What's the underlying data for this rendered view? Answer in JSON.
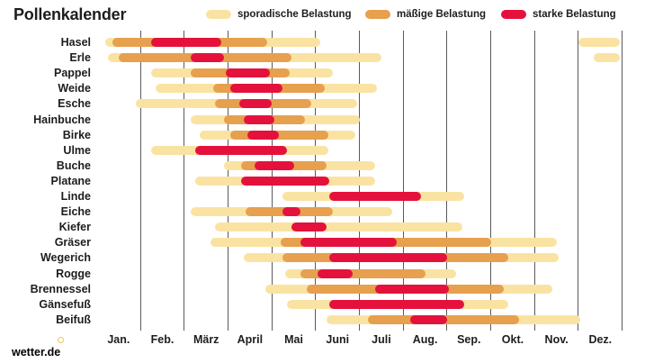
{
  "title": "Pollenkalender",
  "legend": {
    "items": [
      {
        "label": "sporadische Belastung",
        "level": "sporadic"
      },
      {
        "label": "mäßige Belastung",
        "level": "moderate"
      },
      {
        "label": "starke Belastung",
        "level": "strong"
      }
    ]
  },
  "colors": {
    "sporadic": "#fae3a2",
    "moderate": "#e6a04e",
    "strong": "#e5113d",
    "gridline": "#5a5a5a",
    "text": "#1d1d1b"
  },
  "footer": {
    "brand": "wetter.de"
  },
  "chart_data": {
    "type": "heatmap",
    "subtype": "seasonal-timeline-gantt",
    "title": "Pollenkalender",
    "unit": "months, 0 = start of Jan., 12 = end of Dez.",
    "months": [
      "Jan.",
      "Feb.",
      "März",
      "April",
      "Mai",
      "Juni",
      "Juli",
      "Aug.",
      "Sep.",
      "Okt.",
      "Nov.",
      "Dez."
    ],
    "levels": [
      "sporadic",
      "moderate",
      "strong"
    ],
    "legend_position": "top",
    "grid": "vertical month boundaries",
    "rows": [
      {
        "label": "Hasel",
        "segments": [
          {
            "level": "sporadic",
            "start": 0.2,
            "end": 5.1
          },
          {
            "level": "sporadic",
            "start": 11.0,
            "end": 11.95
          },
          {
            "level": "moderate",
            "start": 0.35,
            "end": 3.9
          },
          {
            "level": "strong",
            "start": 1.25,
            "end": 2.85
          }
        ]
      },
      {
        "label": "Erle",
        "segments": [
          {
            "level": "sporadic",
            "start": 0.25,
            "end": 6.5
          },
          {
            "level": "sporadic",
            "start": 11.35,
            "end": 11.95
          },
          {
            "level": "moderate",
            "start": 0.5,
            "end": 4.45
          },
          {
            "level": "strong",
            "start": 2.15,
            "end": 2.9
          }
        ]
      },
      {
        "label": "Pappel",
        "segments": [
          {
            "level": "sporadic",
            "start": 1.25,
            "end": 5.4
          },
          {
            "level": "moderate",
            "start": 2.15,
            "end": 4.4
          },
          {
            "level": "strong",
            "start": 2.95,
            "end": 3.95
          }
        ]
      },
      {
        "label": "Weide",
        "segments": [
          {
            "level": "sporadic",
            "start": 1.35,
            "end": 6.4
          },
          {
            "level": "moderate",
            "start": 2.65,
            "end": 5.2
          },
          {
            "level": "strong",
            "start": 3.05,
            "end": 4.25
          }
        ]
      },
      {
        "label": "Esche",
        "segments": [
          {
            "level": "sporadic",
            "start": 0.9,
            "end": 5.95
          },
          {
            "level": "moderate",
            "start": 2.7,
            "end": 4.9
          },
          {
            "level": "strong",
            "start": 3.25,
            "end": 4.0
          }
        ]
      },
      {
        "label": "Hainbuche",
        "segments": [
          {
            "level": "sporadic",
            "start": 2.15,
            "end": 6.0
          },
          {
            "level": "moderate",
            "start": 2.9,
            "end": 4.75
          },
          {
            "level": "strong",
            "start": 3.35,
            "end": 4.05
          }
        ]
      },
      {
        "label": "Birke",
        "segments": [
          {
            "level": "sporadic",
            "start": 2.35,
            "end": 5.9
          },
          {
            "level": "moderate",
            "start": 3.05,
            "end": 5.3
          },
          {
            "level": "strong",
            "start": 3.45,
            "end": 4.15
          }
        ]
      },
      {
        "label": "Ulme",
        "segments": [
          {
            "level": "sporadic",
            "start": 1.25,
            "end": 5.3
          },
          {
            "level": "strong",
            "start": 2.25,
            "end": 4.35
          }
        ]
      },
      {
        "label": "Buche",
        "segments": [
          {
            "level": "sporadic",
            "start": 2.9,
            "end": 6.35
          },
          {
            "level": "moderate",
            "start": 3.3,
            "end": 5.25
          },
          {
            "level": "strong",
            "start": 3.6,
            "end": 4.5
          }
        ]
      },
      {
        "label": "Platane",
        "segments": [
          {
            "level": "sporadic",
            "start": 2.25,
            "end": 6.35
          },
          {
            "level": "strong",
            "start": 3.3,
            "end": 5.3
          }
        ]
      },
      {
        "label": "Linde",
        "segments": [
          {
            "level": "sporadic",
            "start": 4.25,
            "end": 8.4
          },
          {
            "level": "strong",
            "start": 5.3,
            "end": 7.4
          }
        ]
      },
      {
        "label": "Eiche",
        "segments": [
          {
            "level": "sporadic",
            "start": 2.15,
            "end": 6.75
          },
          {
            "level": "moderate",
            "start": 3.4,
            "end": 5.4
          },
          {
            "level": "strong",
            "start": 4.25,
            "end": 4.65
          }
        ]
      },
      {
        "label": "Kiefer",
        "segments": [
          {
            "level": "sporadic",
            "start": 2.7,
            "end": 8.35
          },
          {
            "level": "strong",
            "start": 4.45,
            "end": 5.25
          }
        ]
      },
      {
        "label": "Gräser",
        "segments": [
          {
            "level": "sporadic",
            "start": 2.6,
            "end": 10.5
          },
          {
            "level": "moderate",
            "start": 4.2,
            "end": 9.0
          },
          {
            "level": "strong",
            "start": 4.65,
            "end": 6.85
          }
        ]
      },
      {
        "label": "Wegerich",
        "segments": [
          {
            "level": "sporadic",
            "start": 3.35,
            "end": 10.55
          },
          {
            "level": "moderate",
            "start": 4.25,
            "end": 9.4
          },
          {
            "level": "strong",
            "start": 5.3,
            "end": 8.0
          }
        ]
      },
      {
        "label": "Rogge",
        "segments": [
          {
            "level": "sporadic",
            "start": 4.3,
            "end": 8.2
          },
          {
            "level": "moderate",
            "start": 4.65,
            "end": 7.5
          },
          {
            "level": "strong",
            "start": 5.05,
            "end": 5.85
          }
        ]
      },
      {
        "label": "Brennessel",
        "segments": [
          {
            "level": "sporadic",
            "start": 3.85,
            "end": 10.4
          },
          {
            "level": "moderate",
            "start": 4.8,
            "end": 9.3
          },
          {
            "level": "strong",
            "start": 6.35,
            "end": 8.05
          }
        ]
      },
      {
        "label": "Gänsefuß",
        "segments": [
          {
            "level": "sporadic",
            "start": 4.35,
            "end": 9.4
          },
          {
            "level": "strong",
            "start": 5.3,
            "end": 8.4
          }
        ]
      },
      {
        "label": "Beifuß",
        "segments": [
          {
            "level": "sporadic",
            "start": 5.25,
            "end": 11.05
          },
          {
            "level": "moderate",
            "start": 6.2,
            "end": 9.65
          },
          {
            "level": "strong",
            "start": 7.15,
            "end": 8.0
          }
        ]
      }
    ]
  }
}
